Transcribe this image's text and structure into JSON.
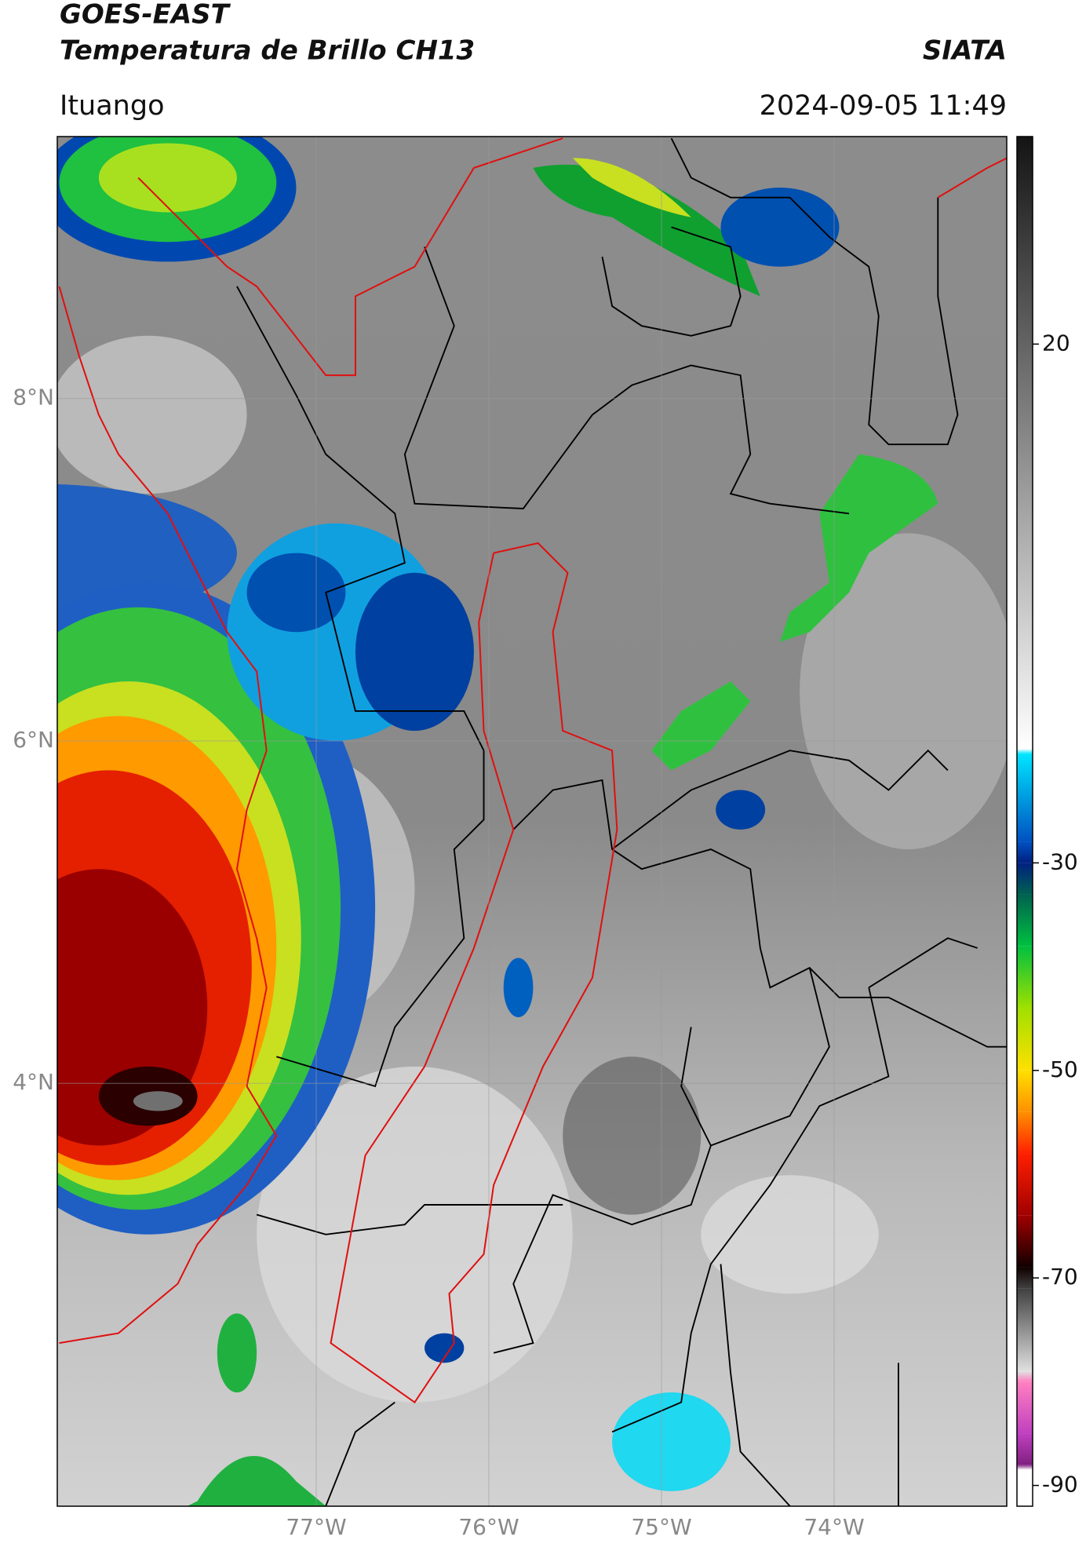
{
  "chart_data": {
    "type": "map",
    "title": "GOES-EAST",
    "subtitle": "Temperatura de Brillo CH13",
    "source": "SIATA",
    "location": "Ituango",
    "timestamp": "2024-09-05 11:49",
    "xlim": [
      -78.5,
      -73.0
    ],
    "ylim": [
      1.53,
      9.53
    ],
    "xticks": [
      {
        "value": -77,
        "label": "77°W"
      },
      {
        "value": -76,
        "label": "76°W"
      },
      {
        "value": -75,
        "label": "75°W"
      },
      {
        "value": -74,
        "label": "74°W"
      }
    ],
    "yticks": [
      {
        "value": 8,
        "label": "8°N"
      },
      {
        "value": 6,
        "label": "6°N"
      },
      {
        "value": 4,
        "label": "4°N"
      }
    ],
    "grid": true,
    "colorbar": {
      "lim": [
        -92,
        40
      ],
      "ticks": [
        20,
        -30,
        -50,
        -70,
        -90
      ],
      "stops": [
        {
          "value": 40,
          "color": "#141414"
        },
        {
          "value": -19,
          "color": "#ffffff"
        },
        {
          "value": -19.5,
          "color": "#00e5ff"
        },
        {
          "value": -28,
          "color": "#0050c0"
        },
        {
          "value": -30,
          "color": "#002080"
        },
        {
          "value": -33,
          "color": "#006050"
        },
        {
          "value": -38,
          "color": "#00c040"
        },
        {
          "value": -44,
          "color": "#a0e000"
        },
        {
          "value": -50,
          "color": "#ffe000"
        },
        {
          "value": -54,
          "color": "#ff9000"
        },
        {
          "value": -58,
          "color": "#ff2000"
        },
        {
          "value": -64,
          "color": "#a00000"
        },
        {
          "value": -69,
          "color": "#100000"
        },
        {
          "value": -71,
          "color": "#404040"
        },
        {
          "value": -79,
          "color": "#e0e0e0"
        },
        {
          "value": -80,
          "color": "#ff80c0"
        },
        {
          "value": -85,
          "color": "#c040c0"
        },
        {
          "value": -88,
          "color": "#802080"
        },
        {
          "value": -88.5,
          "color": "#ffffff"
        },
        {
          "value": -92,
          "color": "#ffffff"
        }
      ]
    }
  }
}
